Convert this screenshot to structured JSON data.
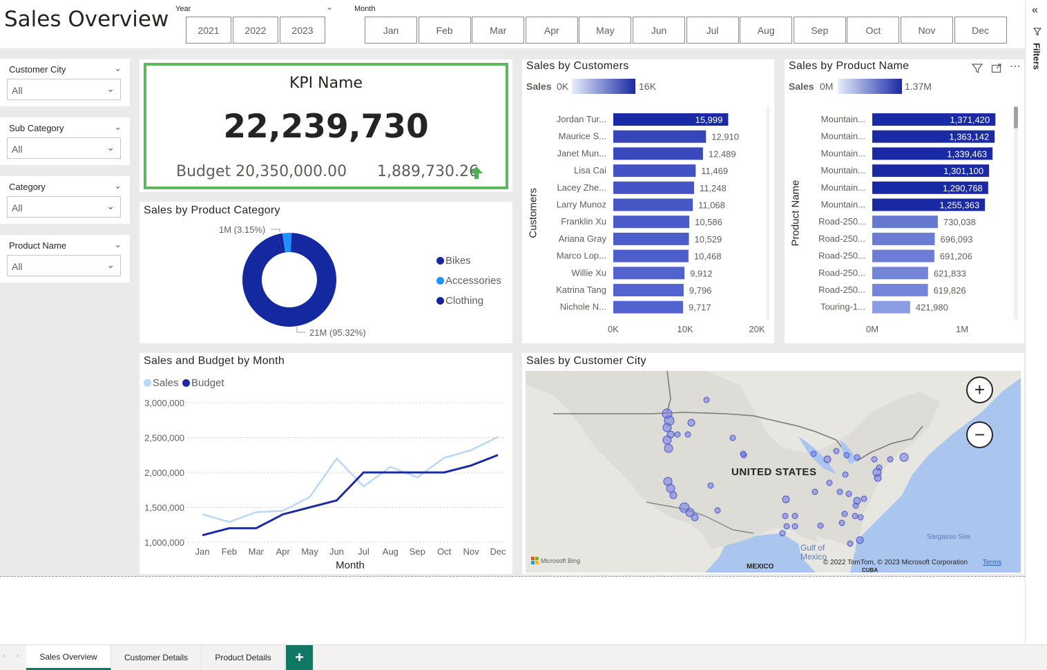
{
  "page": {
    "title": "Sales Overview"
  },
  "year_slicer": {
    "label": "Year",
    "options": [
      "2021",
      "2022",
      "2023"
    ]
  },
  "month_slicer": {
    "label": "Month",
    "options": [
      "Jan",
      "Feb",
      "Mar",
      "Apr",
      "May",
      "Jun",
      "Jul",
      "Aug",
      "Sep",
      "Oct",
      "Nov",
      "Dec"
    ]
  },
  "filters": [
    {
      "label": "Customer City",
      "value": "All"
    },
    {
      "label": "Sub Category",
      "value": "All"
    },
    {
      "label": "Category",
      "value": "All"
    },
    {
      "label": "Product Name",
      "value": "All"
    }
  ],
  "kpi": {
    "name": "KPI Name",
    "value": "22,239,730",
    "budget": "Budget 20,350,000.00",
    "variance": "1,889,730.26",
    "border_color": "#5cb85c",
    "arrow_color": "#4caf50"
  },
  "product_category_chart": {
    "title": "Sales by Product Category",
    "label_small": "1M (3.15%)",
    "label_large": "21M (95.32%)",
    "legend": [
      {
        "name": "Bikes",
        "color": "#1428a0"
      },
      {
        "name": "Accessories",
        "color": "#1e90ff"
      },
      {
        "name": "Clothing",
        "color": "#12239e"
      }
    ]
  },
  "customers_chart": {
    "title": "Sales by Customers",
    "scale_label": "Sales",
    "scale_min": "0K",
    "scale_max": "16K",
    "axis_title": "Customers",
    "x_ticks": [
      "0K",
      "10K",
      "20K"
    ]
  },
  "product_name_chart": {
    "title": "Sales by Product Name",
    "scale_label": "Sales",
    "scale_min": "0M",
    "scale_max": "1.37M",
    "axis_title": "Product Name",
    "x_ticks": [
      "0M",
      "1M"
    ]
  },
  "month_chart": {
    "title": "Sales and Budget by Month",
    "xlabel": "Month",
    "legend": [
      {
        "name": "Sales",
        "color": "#b9d7f7"
      },
      {
        "name": "Budget",
        "color": "#1a2aa5"
      }
    ]
  },
  "map": {
    "title": "Sales by Customer City",
    "country_label": "UNITED STATES",
    "gulf_label": "Gulf of Mexico",
    "sea_label": "Sargasso Sea",
    "mexico_label": "MEXICO",
    "cuba_label": "CUBA",
    "attribution": "© 2022 TomTom, © 2023 Microsoft Corporation",
    "terms": "Terms",
    "bing": "Microsoft Bing"
  },
  "tabs": {
    "active": "Sales Overview",
    "items": [
      "Sales Overview",
      "Customer Details",
      "Product Details"
    ],
    "add_label": "+"
  },
  "right_pane": {
    "label": "Filters"
  },
  "chart_data": [
    {
      "type": "bar",
      "title": "Sales by Customers",
      "ylabel": "Customers",
      "xlim": [
        0,
        20000
      ],
      "categories": [
        "Jordan Tur...",
        "Maurice S...",
        "Janet Mun...",
        "Lisa Cai",
        "Lacey Zhe...",
        "Larry Munoz",
        "Franklin Xu",
        "Ariana Gray",
        "Marco Lop...",
        "Willie Xu",
        "Katrina Tang",
        "Nichole N..."
      ],
      "values": [
        15999,
        12910,
        12489,
        11469,
        11248,
        11068,
        10586,
        10529,
        10468,
        9912,
        9796,
        9717
      ],
      "labels": [
        "15,999",
        "12,910",
        "12,489",
        "11,469",
        "11,248",
        "11,068",
        "10,586",
        "10,529",
        "10,468",
        "9,912",
        "9,796",
        "9,717"
      ]
    },
    {
      "type": "bar",
      "title": "Sales by Product Name",
      "ylabel": "Product Name",
      "xlim": [
        0,
        1500000
      ],
      "categories": [
        "Mountain...",
        "Mountain...",
        "Mountain...",
        "Mountain...",
        "Mountain...",
        "Mountain...",
        "Road-250...",
        "Road-250...",
        "Road-250...",
        "Road-250...",
        "Road-250...",
        "Touring-1..."
      ],
      "values": [
        1371420,
        1363142,
        1339463,
        1301100,
        1290768,
        1255363,
        730038,
        696093,
        691206,
        621833,
        619826,
        421980
      ],
      "labels": [
        "1,371,420",
        "1,363,142",
        "1,339,463",
        "1,301,100",
        "1,290,768",
        "1,255,363",
        "730,038",
        "696,093",
        "691,206",
        "621,833",
        "619,826",
        "421,980"
      ]
    },
    {
      "type": "pie",
      "title": "Sales by Product Category",
      "categories": [
        "Bikes",
        "Accessories",
        "Clothing"
      ],
      "values": [
        95.32,
        3.15,
        1.53
      ]
    },
    {
      "type": "line",
      "title": "Sales and Budget by Month",
      "xlabel": "Month",
      "categories": [
        "Jan",
        "Feb",
        "Mar",
        "Apr",
        "May",
        "Jun",
        "Jul",
        "Aug",
        "Sep",
        "Oct",
        "Nov",
        "Dec"
      ],
      "ylim": [
        1000000,
        3000000
      ],
      "y_ticks": [
        "1,000,000",
        "1,500,000",
        "2,000,000",
        "2,500,000",
        "3,000,000"
      ],
      "series": [
        {
          "name": "Sales",
          "values": [
            1400000,
            1290000,
            1430000,
            1450000,
            1650000,
            2200000,
            1800000,
            2080000,
            1930000,
            2210000,
            2320000,
            2510000
          ]
        },
        {
          "name": "Budget",
          "values": [
            1100000,
            1200000,
            1200000,
            1400000,
            1500000,
            1600000,
            2000000,
            2000000,
            2000000,
            2000000,
            2100000,
            2250000
          ]
        }
      ]
    }
  ]
}
